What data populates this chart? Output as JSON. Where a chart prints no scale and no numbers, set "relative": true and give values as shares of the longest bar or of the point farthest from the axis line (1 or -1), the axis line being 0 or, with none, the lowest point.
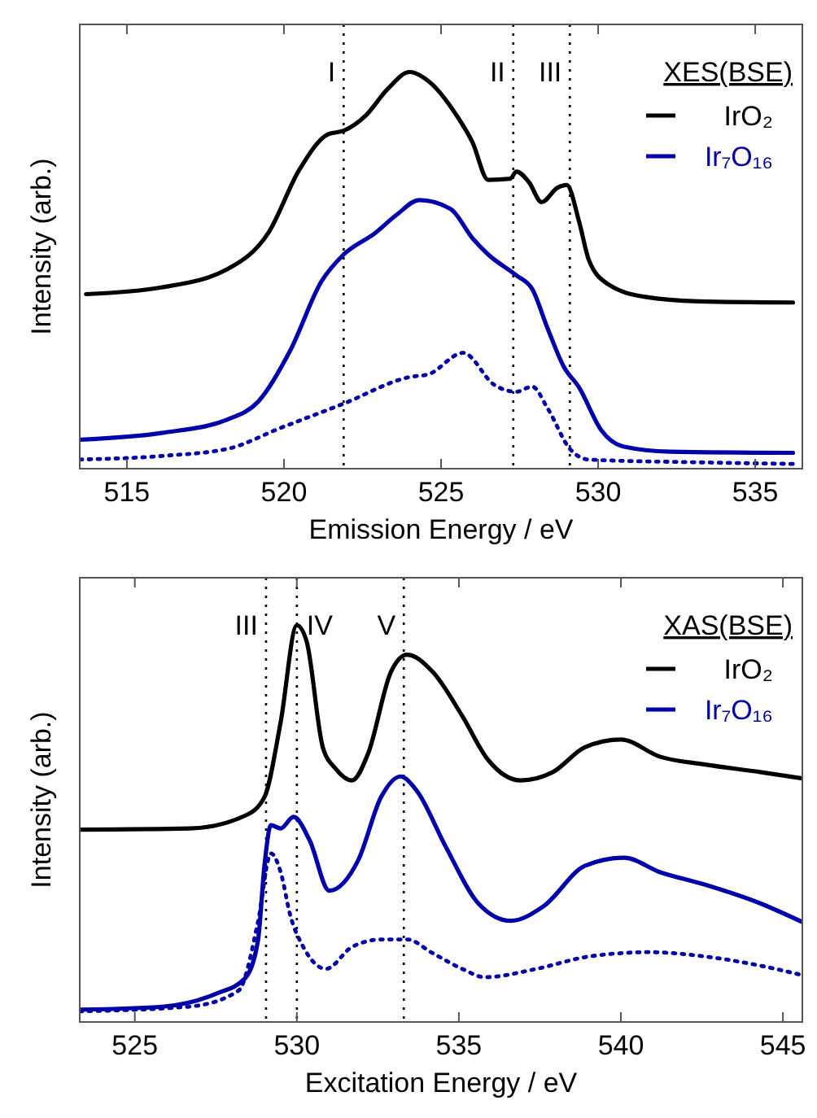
{
  "chart_data": [
    {
      "type": "line",
      "relative": true,
      "xlabel": "Emission Energy / eV",
      "ylabel": "Intensity (arb.)",
      "legend_title": "XES(BSE)",
      "legend": "top right",
      "marker": "none",
      "grid": false,
      "xlim": [
        513.5,
        536.5
      ],
      "xticks": [
        515,
        520,
        525,
        530,
        535
      ],
      "series": [
        {
          "name": "IrO₂",
          "color": "#000000",
          "line_style": "solid",
          "x": [
            513.7,
            516.1,
            518.2,
            519.5,
            520.5,
            521.4,
            521.9,
            522.6,
            523.3,
            524.0,
            524.6,
            525.5,
            526.0,
            526.5,
            527.2,
            527.4,
            527.8,
            528.2,
            528.7,
            529.0,
            529.4,
            529.7,
            530.3,
            531.5,
            533.2,
            536.2
          ],
          "values": [
            0.44,
            0.457,
            0.503,
            0.594,
            0.755,
            0.843,
            0.852,
            0.89,
            0.957,
            1,
            0.977,
            0.89,
            0.823,
            0.728,
            0.731,
            0.749,
            0.722,
            0.672,
            0.708,
            0.715,
            0.621,
            0.527,
            0.466,
            0.433,
            0.422,
            0.419
          ]
        },
        {
          "name": "Ir₇O₁₆",
          "color": "#0000aa",
          "line_style": "solid",
          "x": [
            513.5,
            516.1,
            518.2,
            519.2,
            520.2,
            521.2,
            521.9,
            522.9,
            523.6,
            524.3,
            525.3,
            526.0,
            526.5,
            527.4,
            527.9,
            528.4,
            528.9,
            529.4,
            530.1,
            530.8,
            532.3,
            536.2
          ],
          "values": [
            0.073,
            0.09,
            0.124,
            0.171,
            0.298,
            0.473,
            0.54,
            0.594,
            0.641,
            0.677,
            0.655,
            0.581,
            0.54,
            0.487,
            0.453,
            0.352,
            0.258,
            0.204,
            0.097,
            0.056,
            0.043,
            0.04
          ]
        },
        {
          "color": "#0000aa",
          "line_style": "dotted",
          "x": [
            513.5,
            516.1,
            518.2,
            519.9,
            521.9,
            524.0,
            524.6,
            525.7,
            526.7,
            527.4,
            527.9,
            528.4,
            529.1,
            529.7,
            533.2,
            536.2
          ],
          "values": [
            0.023,
            0.032,
            0.05,
            0.103,
            0.164,
            0.231,
            0.238,
            0.292,
            0.211,
            0.194,
            0.207,
            0.151,
            0.05,
            0.023,
            0.016,
            0.012
          ]
        }
      ],
      "ref_lines": [
        {
          "axis": "x",
          "value": 521.9,
          "label": "I",
          "color": "#000000",
          "line_style": "dotted"
        },
        {
          "axis": "x",
          "value": 527.3,
          "label": "II",
          "color": "#000000",
          "line_style": "dotted"
        },
        {
          "axis": "x",
          "value": 529.1,
          "label": "III",
          "color": "#000000",
          "line_style": "dotted"
        }
      ]
    },
    {
      "type": "line",
      "relative": true,
      "xlabel": "Excitation Energy / eV",
      "ylabel": "Intensity (arb.)",
      "legend_title": "XAS(BSE)",
      "legend": "top right",
      "marker": "none",
      "grid": false,
      "xlim": [
        523.3,
        545.6
      ],
      "xticks": [
        525,
        530,
        535,
        540,
        545
      ],
      "series": [
        {
          "name": "IrO₂",
          "color": "#000000",
          "line_style": "solid",
          "x": [
            523.3,
            526.7,
            528.4,
            529.0,
            529.5,
            530.0,
            530.3,
            530.8,
            531.2,
            531.7,
            532.2,
            532.9,
            533.4,
            534.2,
            535.1,
            535.9,
            536.9,
            537.9,
            538.9,
            540.0,
            541.2,
            542.6,
            544.3,
            545.6
          ],
          "values": [
            0.485,
            0.488,
            0.52,
            0.567,
            0.756,
            1,
            0.96,
            0.693,
            0.638,
            0.609,
            0.677,
            0.882,
            0.926,
            0.882,
            0.772,
            0.661,
            0.609,
            0.63,
            0.693,
            0.712,
            0.669,
            0.649,
            0.63,
            0.614
          ]
        },
        {
          "name": "Ir₇O₁₆",
          "color": "#0000aa",
          "line_style": "solid",
          "x": [
            523.3,
            525.9,
            527.5,
            528.4,
            528.8,
            529.0,
            529.2,
            529.5,
            529.9,
            530.4,
            531.0,
            531.9,
            532.6,
            533.2,
            533.7,
            534.6,
            535.6,
            536.6,
            537.6,
            538.9,
            540.1,
            541.2,
            542.6,
            544.3,
            545.6
          ],
          "values": [
            0.031,
            0.039,
            0.071,
            0.11,
            0.205,
            0.394,
            0.496,
            0.488,
            0.517,
            0.457,
            0.331,
            0.409,
            0.567,
            0.619,
            0.583,
            0.441,
            0.299,
            0.255,
            0.291,
            0.394,
            0.414,
            0.378,
            0.346,
            0.299,
            0.252
          ]
        },
        {
          "color": "#0000aa",
          "line_style": "dotted",
          "x": [
            523.3,
            526.7,
            528.2,
            528.8,
            529.2,
            529.5,
            529.8,
            530.2,
            530.9,
            531.7,
            532.6,
            533.4,
            534.2,
            535.1,
            535.8,
            537.4,
            539.0,
            540.9,
            542.6,
            544.3,
            545.6
          ],
          "values": [
            0.027,
            0.039,
            0.079,
            0.252,
            0.425,
            0.378,
            0.268,
            0.189,
            0.134,
            0.189,
            0.208,
            0.208,
            0.173,
            0.134,
            0.113,
            0.134,
            0.165,
            0.176,
            0.165,
            0.142,
            0.118
          ]
        }
      ],
      "ref_lines": [
        {
          "axis": "x",
          "value": 529.05,
          "label": "III",
          "color": "#000000",
          "line_style": "dotted"
        },
        {
          "axis": "x",
          "value": 530.0,
          "label": "IV",
          "color": "#000000",
          "line_style": "dotted"
        },
        {
          "axis": "x",
          "value": 533.3,
          "label": "V",
          "color": "#000000",
          "line_style": "dotted"
        }
      ]
    }
  ]
}
